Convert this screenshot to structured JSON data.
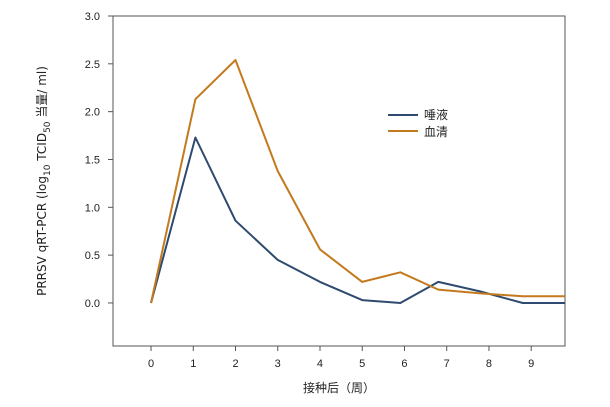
{
  "chart_data": {
    "type": "line",
    "xlabel": "接种后（周）",
    "ylabel": {
      "prefix": "PRRSV qRT-PCR (log",
      "sub1": "10",
      "mid": " TCID",
      "sub2": "50",
      "suffix": " 当量/ ml)"
    },
    "xlim": [
      -0.9,
      9.8
    ],
    "ylim": [
      -0.45,
      3.0
    ],
    "x_ticks": [
      0,
      1,
      2,
      3,
      4,
      5,
      6,
      7,
      8,
      9
    ],
    "x_tick_labels": [
      "0",
      "1",
      "2",
      "3",
      "4",
      "5",
      "6",
      "7",
      "8",
      "9"
    ],
    "y_ticks": [
      0.0,
      0.5,
      1.0,
      1.5,
      2.0,
      2.5,
      3.0
    ],
    "y_tick_labels": [
      "0.0",
      "0.5",
      "1.0",
      "1.5",
      "2.0",
      "2.5",
      "3.0"
    ],
    "grid": false,
    "legend_position": "center-right",
    "series": [
      {
        "name": "唾液",
        "color": "#2E4A6E",
        "x": [
          0,
          1.05,
          2.0,
          3.0,
          4.0,
          5.0,
          5.9,
          6.8,
          7.8,
          8.8,
          9.8
        ],
        "y": [
          0.0,
          1.73,
          0.86,
          0.45,
          0.22,
          0.03,
          0.0,
          0.22,
          0.12,
          0.0,
          0.0
        ]
      },
      {
        "name": "血清",
        "color": "#C37A1E",
        "x": [
          0,
          1.05,
          2.0,
          3.0,
          4.0,
          5.0,
          5.9,
          6.8,
          7.8,
          8.8,
          9.8
        ],
        "y": [
          0.0,
          2.13,
          2.54,
          1.38,
          0.56,
          0.22,
          0.32,
          0.14,
          0.1,
          0.07,
          0.07
        ]
      }
    ]
  }
}
